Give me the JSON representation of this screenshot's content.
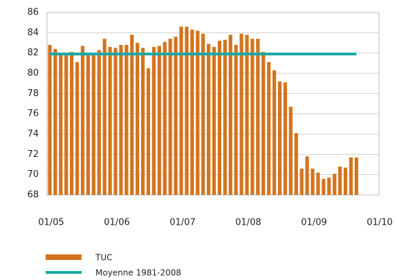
{
  "chart_data": {
    "type": "bar",
    "categories": [
      "01/05",
      null,
      null,
      null,
      null,
      null,
      null,
      null,
      null,
      null,
      null,
      null,
      "01/06",
      null,
      null,
      null,
      null,
      null,
      null,
      null,
      null,
      null,
      null,
      null,
      "01/07",
      null,
      null,
      null,
      null,
      null,
      null,
      null,
      null,
      null,
      null,
      null,
      "01/08",
      null,
      null,
      null,
      null,
      null,
      null,
      null,
      null,
      null,
      null,
      null,
      "01/09",
      null,
      null,
      null,
      null,
      null,
      null,
      null,
      null,
      null,
      null,
      null,
      "01/10"
    ],
    "series": [
      {
        "name": "TUC",
        "color": "#d4741f",
        "type": "bar",
        "values": [
          82.8,
          82.4,
          81.9,
          81.8,
          82.1,
          81.1,
          82.7,
          81.8,
          81.9,
          82.3,
          83.4,
          82.6,
          82.5,
          82.8,
          82.8,
          83.8,
          83.0,
          82.5,
          80.5,
          82.6,
          82.7,
          83.1,
          83.4,
          83.6,
          84.6,
          84.6,
          84.3,
          84.2,
          83.9,
          82.9,
          82.6,
          83.2,
          83.3,
          83.8,
          82.8,
          83.9,
          83.8,
          83.4,
          83.4,
          82.1,
          81.1,
          80.3,
          79.2,
          79.1,
          76.7,
          74.1,
          70.6,
          71.8,
          70.6,
          70.2,
          69.6,
          69.7,
          70.1,
          70.8,
          70.7,
          71.7,
          71.7,
          null,
          null,
          null,
          null
        ]
      },
      {
        "name": "Moyenne 1981-2008",
        "color": "#1aa8a8",
        "type": "line",
        "values": [
          81.9,
          81.9,
          81.9,
          81.9,
          81.9,
          81.9,
          81.9,
          81.9,
          81.9,
          81.9,
          81.9,
          81.9,
          81.9,
          81.9,
          81.9,
          81.9,
          81.9,
          81.9,
          81.9,
          81.9,
          81.9,
          81.9,
          81.9,
          81.9,
          81.9,
          81.9,
          81.9,
          81.9,
          81.9,
          81.9,
          81.9,
          81.9,
          81.9,
          81.9,
          81.9,
          81.9,
          81.9,
          81.9,
          81.9,
          81.9,
          81.9,
          81.9,
          81.9,
          81.9,
          81.9,
          81.9,
          81.9,
          81.9,
          81.9,
          81.9,
          81.9,
          81.9,
          81.9,
          81.9,
          81.9,
          81.9,
          81.9,
          null,
          null,
          null,
          null
        ]
      }
    ],
    "ylim": [
      68,
      86
    ],
    "yticks": [
      68,
      70,
      72,
      74,
      76,
      78,
      80,
      82,
      84,
      86
    ],
    "grid": true
  }
}
